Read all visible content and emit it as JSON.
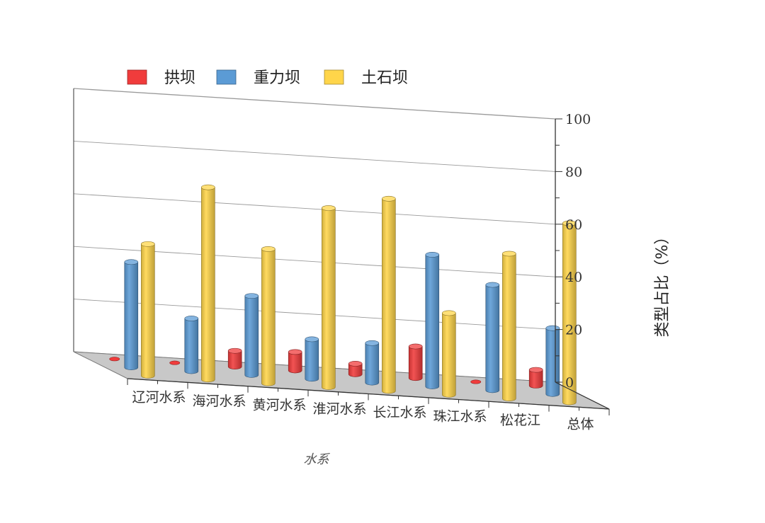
{
  "chart_data": {
    "type": "bar",
    "subtype": "3d-cylinder",
    "xlabel": "水系",
    "ylabel": "类型占比（%）",
    "ylim": [
      0,
      100
    ],
    "yticks": [
      0,
      20,
      40,
      60,
      80,
      100
    ],
    "grid": true,
    "legend_position": "top-left",
    "categories": [
      "辽河水系",
      "海河水系",
      "黄河水系",
      "淮河水系",
      "长江水系",
      "珠江水系",
      "松花江",
      "总体"
    ],
    "series": [
      {
        "name": "拱坝",
        "color": "#f03c3c",
        "values": [
          0,
          0,
          6,
          7,
          4,
          12,
          0,
          6
        ]
      },
      {
        "name": "重力坝",
        "color": "#5b9bd5",
        "values": [
          40,
          20,
          30,
          15,
          15,
          50,
          40,
          25
        ]
      },
      {
        "name": "土石坝",
        "color": "#ffd54a",
        "values": [
          50,
          73,
          51,
          68,
          73,
          31,
          55,
          68
        ]
      }
    ]
  }
}
